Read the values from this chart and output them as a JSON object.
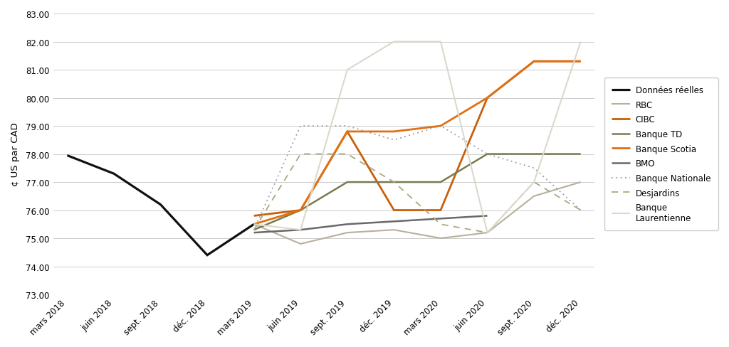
{
  "ylabel": "¢ US par CAD",
  "x_labels": [
    "mars 2018",
    "juin 2018",
    "sept. 2018",
    "déc. 2018",
    "mars 2019",
    "juin 2019",
    "sept. 2019",
    "déc. 2019",
    "mars 2020",
    "juin 2020",
    "sept. 2020",
    "déc. 2020"
  ],
  "ylim": [
    73.0,
    83.0
  ],
  "yticks": [
    73.0,
    74.0,
    75.0,
    76.0,
    77.0,
    78.0,
    79.0,
    80.0,
    81.0,
    82.0,
    83.0
  ],
  "series": [
    {
      "name": "Données réelles",
      "color": "#111111",
      "linewidth": 2.3,
      "linestyle": "solid",
      "x_indices": [
        0,
        1,
        2,
        3,
        4
      ],
      "y_values": [
        77.95,
        77.3,
        76.2,
        74.4,
        75.5
      ]
    },
    {
      "name": "RBC",
      "color": "#b8b09a",
      "linewidth": 1.5,
      "linestyle": "solid",
      "x_indices": [
        4,
        5,
        6,
        7,
        8,
        9,
        10,
        11
      ],
      "y_values": [
        75.5,
        74.8,
        75.2,
        75.3,
        75.0,
        75.2,
        76.5,
        77.0
      ]
    },
    {
      "name": "CIBC",
      "color": "#c8600a",
      "linewidth": 2.0,
      "linestyle": "solid",
      "x_indices": [
        4,
        5,
        6,
        7,
        8,
        9,
        10,
        11
      ],
      "y_values": [
        75.8,
        76.0,
        78.8,
        76.0,
        76.0,
        80.0,
        81.3,
        81.3
      ]
    },
    {
      "name": "Banque TD",
      "color": "#7a7a50",
      "linewidth": 1.8,
      "linestyle": "solid",
      "x_indices": [
        4,
        5,
        6,
        7,
        8,
        9,
        10,
        11
      ],
      "y_values": [
        75.3,
        76.0,
        77.0,
        77.0,
        77.0,
        78.0,
        78.0,
        78.0
      ]
    },
    {
      "name": "Banque Scotia",
      "color": "#e07010",
      "linewidth": 2.0,
      "linestyle": "solid",
      "x_indices": [
        4,
        5,
        6,
        7,
        8,
        9,
        10,
        11
      ],
      "y_values": [
        75.5,
        76.0,
        78.8,
        78.8,
        79.0,
        80.0,
        81.3,
        81.3
      ]
    },
    {
      "name": "BMO",
      "color": "#696969",
      "linewidth": 1.8,
      "linestyle": "solid",
      "x_indices": [
        4,
        5,
        6,
        7,
        8,
        9
      ],
      "y_values": [
        75.2,
        75.3,
        75.5,
        75.6,
        75.7,
        75.8
      ]
    },
    {
      "name": "Banque Nationale",
      "color": "#9999aa",
      "linewidth": 1.3,
      "linestyle": "dotted",
      "x_indices": [
        4,
        5,
        6,
        7,
        8,
        9,
        10,
        11
      ],
      "y_values": [
        75.3,
        79.0,
        79.0,
        78.5,
        79.0,
        78.0,
        77.5,
        76.0
      ]
    },
    {
      "name": "Desjardins",
      "color": "#aaa882",
      "linewidth": 1.3,
      "linestyle": "dashed",
      "x_indices": [
        4,
        5,
        6,
        7,
        8,
        9,
        10,
        11
      ],
      "y_values": [
        75.3,
        78.0,
        78.0,
        77.0,
        75.5,
        75.2,
        77.0,
        76.0
      ]
    },
    {
      "name": "Banque\nLaurentienne",
      "color": "#ddd8cc",
      "linewidth": 1.5,
      "linestyle": "solid",
      "x_indices": [
        4,
        5,
        6,
        7,
        8,
        9,
        10,
        11
      ],
      "y_values": [
        75.5,
        75.3,
        81.0,
        82.0,
        82.0,
        75.2,
        77.0,
        82.0
      ]
    }
  ],
  "background_color": "#ffffff",
  "grid_color": "#cccccc",
  "border_color": "#aaaaaa",
  "fig_border_color": "#bbbbbb"
}
